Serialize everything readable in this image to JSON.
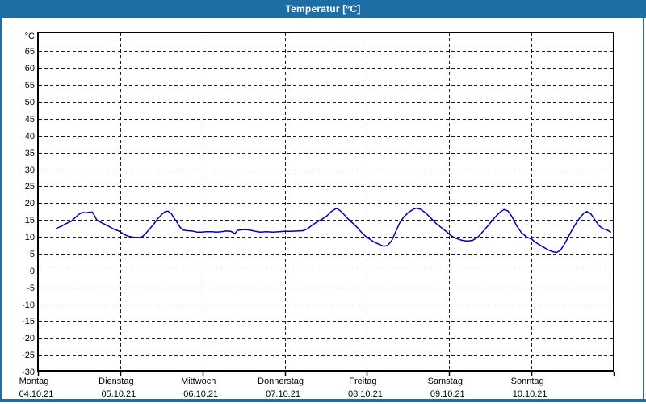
{
  "window": {
    "title": "Temperatur [°C]"
  },
  "colors": {
    "titlebar_bg": "#1c6ea4",
    "titlebar_text": "#ffffff",
    "window_border": "#1c6ea4",
    "grid": "#1c1c1c",
    "frame": "#000000",
    "axis_text": "#000000",
    "plot_bg": "#ffffff",
    "line": "#0000b4"
  },
  "chart_data": {
    "type": "line",
    "title": "Temperatur [°C]",
    "legend": "none",
    "y_axis": {
      "unit_label": "°C",
      "tick_start": 65,
      "tick_end": -30,
      "tick_step": -5,
      "axis_min": -30,
      "axis_max": 70.6,
      "gridlines": "dashed"
    },
    "x_axis": {
      "unit": "hours_since_monday_00",
      "range_hours": [
        0,
        168
      ],
      "gridlines": "dashed",
      "days": [
        {
          "name": "Montag",
          "date": "04.10.21"
        },
        {
          "name": "Dienstag",
          "date": "05.10.21"
        },
        {
          "name": "Mittwoch",
          "date": "06.10.21"
        },
        {
          "name": "Donnerstag",
          "date": "07.10.21"
        },
        {
          "name": "Freitag",
          "date": "08.10.21"
        },
        {
          "name": "Samstag",
          "date": "09.10.21"
        },
        {
          "name": "Sonntag",
          "date": "10.10.21"
        }
      ]
    },
    "series": [
      {
        "name": "Temperatur",
        "color": "#0000b4",
        "points": [
          [
            5.4,
            12.5
          ],
          [
            6.8,
            13.1
          ],
          [
            8.2,
            13.9
          ],
          [
            9.7,
            14.6
          ],
          [
            10.8,
            15.6
          ],
          [
            12.0,
            16.7
          ],
          [
            13.0,
            17.2
          ],
          [
            14.1,
            17.1
          ],
          [
            15.1,
            17.3
          ],
          [
            15.8,
            17.3
          ],
          [
            16.5,
            16.3
          ],
          [
            17.2,
            14.9
          ],
          [
            18.9,
            14.0
          ],
          [
            20.3,
            13.3
          ],
          [
            21.9,
            12.4
          ],
          [
            23.8,
            11.6
          ],
          [
            25.0,
            10.8
          ],
          [
            26.2,
            10.2
          ],
          [
            27.6,
            9.9
          ],
          [
            29.0,
            9.7
          ],
          [
            30.4,
            10.0
          ],
          [
            31.3,
            10.8
          ],
          [
            32.5,
            12.2
          ],
          [
            33.7,
            13.6
          ],
          [
            34.9,
            15.3
          ],
          [
            36.1,
            16.6
          ],
          [
            37.0,
            17.4
          ],
          [
            37.9,
            17.6
          ],
          [
            38.9,
            16.9
          ],
          [
            39.8,
            15.4
          ],
          [
            40.5,
            14.4
          ],
          [
            41.5,
            12.8
          ],
          [
            42.4,
            12.0
          ],
          [
            43.6,
            11.8
          ],
          [
            45.0,
            11.7
          ],
          [
            46.4,
            11.4
          ],
          [
            47.8,
            11.4
          ],
          [
            49.2,
            11.5
          ],
          [
            50.7,
            11.5
          ],
          [
            52.1,
            11.4
          ],
          [
            53.5,
            11.5
          ],
          [
            54.9,
            11.7
          ],
          [
            56.3,
            11.6
          ],
          [
            57.5,
            10.9
          ],
          [
            58.2,
            11.9
          ],
          [
            59.6,
            12.1
          ],
          [
            61.0,
            12.1
          ],
          [
            62.2,
            11.9
          ],
          [
            63.4,
            11.6
          ],
          [
            64.8,
            11.4
          ],
          [
            66.7,
            11.5
          ],
          [
            68.6,
            11.4
          ],
          [
            70.4,
            11.5
          ],
          [
            71.9,
            11.6
          ],
          [
            73.7,
            11.6
          ],
          [
            75.6,
            11.7
          ],
          [
            77.3,
            11.8
          ],
          [
            78.7,
            12.4
          ],
          [
            80.1,
            13.5
          ],
          [
            81.5,
            14.4
          ],
          [
            82.9,
            15.2
          ],
          [
            84.3,
            16.2
          ],
          [
            85.5,
            17.4
          ],
          [
            86.5,
            18.1
          ],
          [
            87.2,
            18.4
          ],
          [
            88.1,
            17.8
          ],
          [
            89.3,
            16.6
          ],
          [
            90.5,
            15.3
          ],
          [
            91.9,
            14.0
          ],
          [
            93.3,
            12.6
          ],
          [
            94.5,
            11.2
          ],
          [
            95.4,
            10.3
          ],
          [
            96.6,
            9.4
          ],
          [
            98.0,
            8.5
          ],
          [
            99.4,
            7.8
          ],
          [
            100.8,
            7.2
          ],
          [
            102.0,
            7.4
          ],
          [
            103.2,
            8.8
          ],
          [
            104.4,
            11.5
          ],
          [
            105.6,
            14.2
          ],
          [
            106.7,
            15.8
          ],
          [
            108.1,
            17.2
          ],
          [
            109.6,
            18.2
          ],
          [
            110.5,
            18.5
          ],
          [
            111.7,
            18.1
          ],
          [
            113.1,
            17.1
          ],
          [
            114.5,
            15.7
          ],
          [
            116.2,
            13.9
          ],
          [
            117.6,
            12.8
          ],
          [
            119.0,
            11.7
          ],
          [
            120.4,
            10.4
          ],
          [
            121.8,
            9.6
          ],
          [
            123.5,
            9.0
          ],
          [
            125.1,
            8.7
          ],
          [
            126.8,
            8.9
          ],
          [
            128.4,
            9.9
          ],
          [
            129.8,
            11.5
          ],
          [
            131.5,
            13.5
          ],
          [
            133.1,
            15.5
          ],
          [
            134.5,
            17.0
          ],
          [
            136.0,
            18.1
          ],
          [
            137.1,
            17.7
          ],
          [
            138.3,
            16.0
          ],
          [
            139.7,
            13.2
          ],
          [
            141.1,
            11.2
          ],
          [
            142.5,
            10.0
          ],
          [
            144.0,
            9.3
          ],
          [
            145.4,
            8.2
          ],
          [
            147.0,
            7.2
          ],
          [
            148.7,
            6.2
          ],
          [
            150.1,
            5.6
          ],
          [
            151.3,
            5.3
          ],
          [
            152.5,
            6.0
          ],
          [
            153.9,
            8.3
          ],
          [
            155.3,
            11.0
          ],
          [
            156.7,
            13.5
          ],
          [
            158.1,
            15.6
          ],
          [
            159.3,
            17.0
          ],
          [
            160.2,
            17.5
          ],
          [
            161.4,
            16.7
          ],
          [
            162.6,
            14.9
          ],
          [
            163.8,
            13.2
          ],
          [
            164.9,
            12.4
          ],
          [
            166.1,
            12.0
          ],
          [
            167.1,
            11.4
          ]
        ]
      }
    ]
  }
}
